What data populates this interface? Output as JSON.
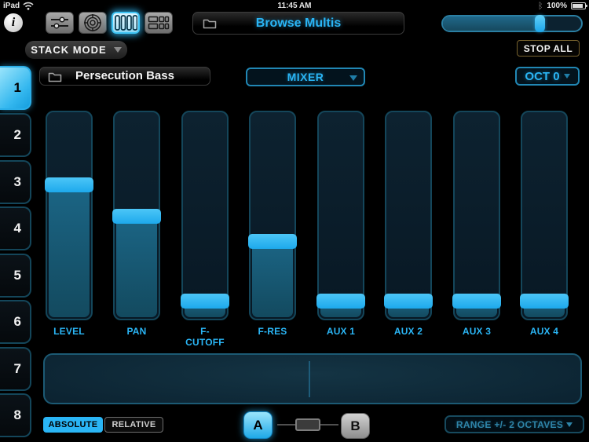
{
  "status_bar": {
    "device_label": "iPad",
    "time": "11:45 AM",
    "battery_label": "100%",
    "bluetooth_glyph": "ᛒ"
  },
  "toolbar": {
    "info_glyph": "i",
    "views": [
      {
        "name": "horizontal-sliders-view",
        "icon": "h-sliders-icon"
      },
      {
        "name": "xy-pad-view",
        "icon": "target-icon"
      },
      {
        "name": "vertical-faders-view",
        "icon": "v-faders-icon"
      },
      {
        "name": "channel-strips-view",
        "icon": "rows-icon"
      }
    ],
    "active_view_index": 2,
    "browse_label": "Browse Multis",
    "master_volume": 0.72
  },
  "mode_row": {
    "stack_mode_label": "STACK MODE",
    "stop_all_label": "STOP ALL"
  },
  "patch_row": {
    "patch_name": "Persecution Bass",
    "selector_label": "MIXER",
    "octave_label": "OCT 0"
  },
  "channel_tabs": {
    "labels": [
      "1",
      "2",
      "3",
      "4",
      "5",
      "6",
      "7",
      "8"
    ],
    "active_index": 0
  },
  "mixer": {
    "faders": [
      {
        "label": "LEVEL",
        "value": 0.66
      },
      {
        "label": "PAN",
        "value": 0.49
      },
      {
        "label": "F-CUTOFF",
        "value": 0.04
      },
      {
        "label": "F-RES",
        "value": 0.36
      },
      {
        "label": "AUX 1",
        "value": 0.04
      },
      {
        "label": "AUX 2",
        "value": 0.04
      },
      {
        "label": "AUX 3",
        "value": 0.04
      },
      {
        "label": "AUX 4",
        "value": 0.04
      }
    ]
  },
  "bottom_bar": {
    "absolute_label": "ABSOLUTE",
    "relative_label": "RELATIVE",
    "morph_a_label": "A",
    "morph_b_label": "B",
    "ab_morph": 0.5,
    "range_label": "RANGE +/- 2 OCTAVES"
  },
  "colors": {
    "accent": "#2ab5f5",
    "teal_border": "#1b5a74",
    "fader_fill": "#16597a",
    "track_bg": "#0a1c27",
    "stop_all_border": "#77622e"
  }
}
